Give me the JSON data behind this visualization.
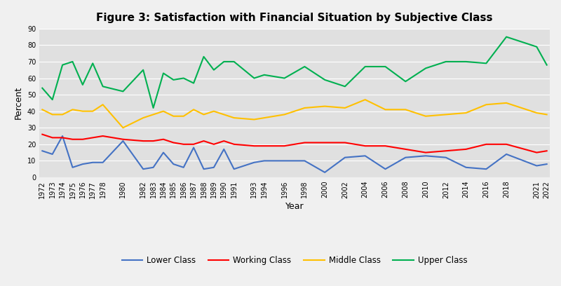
{
  "title": "Figure 3: Satisfaction with Financial Situation by Subjective Class",
  "xlabel": "Year",
  "ylabel": "Percent",
  "ylim": [
    0,
    90
  ],
  "yticks": [
    0,
    10,
    20,
    30,
    40,
    50,
    60,
    70,
    80,
    90
  ],
  "years": [
    1972,
    1973,
    1974,
    1975,
    1976,
    1977,
    1978,
    1980,
    1982,
    1983,
    1984,
    1985,
    1986,
    1987,
    1988,
    1989,
    1990,
    1991,
    1993,
    1994,
    1996,
    1998,
    2000,
    2002,
    2004,
    2006,
    2008,
    2010,
    2012,
    2014,
    2016,
    2018,
    2021,
    2022
  ],
  "lower_class": [
    16,
    14,
    25,
    6,
    8,
    9,
    9,
    22,
    5,
    6,
    15,
    8,
    6,
    18,
    5,
    6,
    17,
    5,
    9,
    10,
    10,
    10,
    3,
    12,
    13,
    5,
    12,
    13,
    12,
    6,
    5,
    14,
    7,
    8
  ],
  "working_class": [
    26,
    24,
    24,
    23,
    23,
    24,
    25,
    23,
    22,
    22,
    23,
    21,
    20,
    20,
    22,
    20,
    22,
    20,
    19,
    19,
    19,
    21,
    21,
    21,
    19,
    19,
    17,
    15,
    16,
    17,
    20,
    20,
    15,
    16
  ],
  "middle_class": [
    41,
    38,
    38,
    41,
    40,
    40,
    44,
    30,
    36,
    38,
    40,
    37,
    37,
    41,
    38,
    40,
    38,
    36,
    35,
    36,
    38,
    42,
    43,
    42,
    47,
    41,
    41,
    37,
    38,
    39,
    44,
    45,
    39,
    38
  ],
  "upper_class": [
    54,
    47,
    68,
    70,
    56,
    69,
    55,
    52,
    65,
    42,
    63,
    59,
    60,
    57,
    73,
    65,
    70,
    70,
    60,
    62,
    60,
    67,
    59,
    55,
    67,
    67,
    58,
    66,
    70,
    70,
    69,
    85,
    79,
    68
  ],
  "lower_color": "#4472c4",
  "working_color": "#ff0000",
  "middle_color": "#ffc000",
  "upper_color": "#00b050",
  "fig_facecolor": "#f0f0f0",
  "plot_facecolor": "#e0e0e0",
  "grid_color": "#ffffff",
  "legend_labels": [
    "Lower Class",
    "Working Class",
    "Middle Class",
    "Upper Class"
  ],
  "title_fontsize": 11,
  "axis_label_fontsize": 9,
  "tick_fontsize": 7,
  "legend_fontsize": 8.5
}
